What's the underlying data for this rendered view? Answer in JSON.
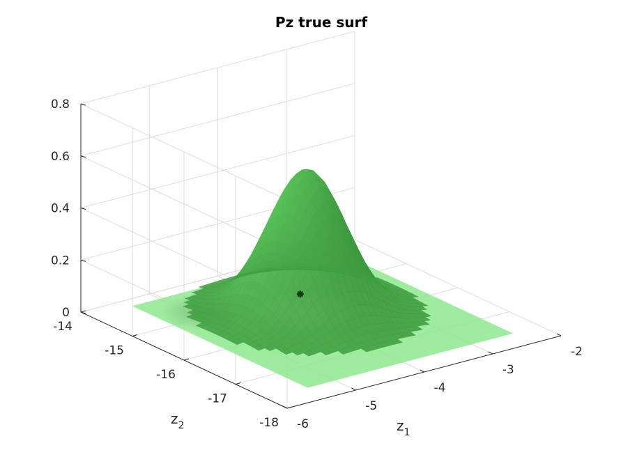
{
  "chart_data": {
    "type": "surface",
    "title": "Pz true surf",
    "xlabel": {
      "base": "z",
      "sub": "1"
    },
    "ylabel": {
      "base": "z",
      "sub": "2"
    },
    "zlabel": "",
    "xlim": [
      -6,
      -2
    ],
    "ylim": [
      -18,
      -14
    ],
    "zlim": [
      0,
      0.8
    ],
    "x_ticks": [
      "-6",
      "-5",
      "-4",
      "-3",
      "-2"
    ],
    "y_ticks": [
      "-18",
      "-17",
      "-16",
      "-15",
      "-14"
    ],
    "z_ticks": [
      "0",
      "0.2",
      "0.4",
      "0.6",
      "0.8"
    ],
    "grid": true,
    "surface": {
      "function": "gaussian",
      "peak": 0.55,
      "center": [
        -3.9,
        -15.6
      ],
      "sigma": [
        0.45,
        0.5
      ],
      "x_range": [
        -5.4,
        -2.4
      ],
      "y_range": [
        -17.6,
        -14.2
      ],
      "color": "#3fae3f"
    },
    "floor_map": {
      "z": 0,
      "x_range": [
        -5.4,
        -2.4
      ],
      "y_range": [
        -17.6,
        -14.2
      ],
      "color": "#8ee88e",
      "highlight": [
        -3.9,
        -15.6
      ]
    },
    "marker": {
      "x": -3.7,
      "y": -15.2,
      "z": 0.02,
      "symbol": "asterisk",
      "color": "#0f3f0f"
    }
  }
}
